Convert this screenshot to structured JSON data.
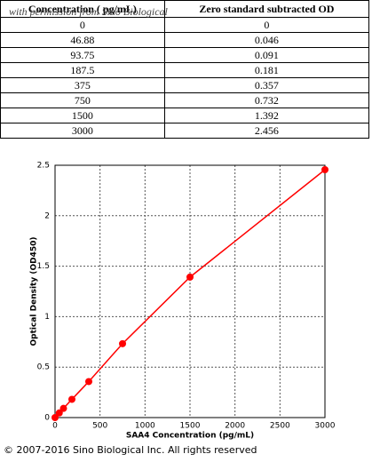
{
  "table": {
    "header": [
      "Concentration ( pg/mL)",
      "Zero standard subtracted OD"
    ],
    "rows": [
      [
        0,
        0
      ],
      [
        46.88,
        0.046
      ],
      [
        93.75,
        0.091
      ],
      [
        187.5,
        0.181
      ],
      [
        375,
        0.357
      ],
      [
        750,
        0.732
      ],
      [
        1500,
        1.392
      ],
      [
        3000,
        2.456
      ]
    ]
  },
  "watermark": "with permission from Sino Biological",
  "chart_data": {
    "type": "line",
    "x_label": "SAA4 Concentration (pg/mL)",
    "y_label": "Optical Density (OD450)",
    "x": [
      0,
      46.88,
      93.75,
      187.5,
      375,
      750,
      1500,
      3000
    ],
    "series": [
      {
        "name": "SAA4",
        "color": "#ff0000",
        "values": [
          0,
          0.046,
          0.091,
          0.181,
          0.357,
          0.732,
          1.392,
          2.456
        ]
      }
    ],
    "xlim": [
      0,
      3000
    ],
    "xticks": [
      0,
      500,
      1000,
      1500,
      2000,
      2500,
      3000
    ],
    "ylim": [
      0,
      2.5
    ],
    "yticks": [
      0,
      0.5,
      1,
      1.5,
      2,
      2.5
    ],
    "grid": true
  },
  "copyright": "© 2007-2016 Sino Biological Inc. All rights reserved"
}
